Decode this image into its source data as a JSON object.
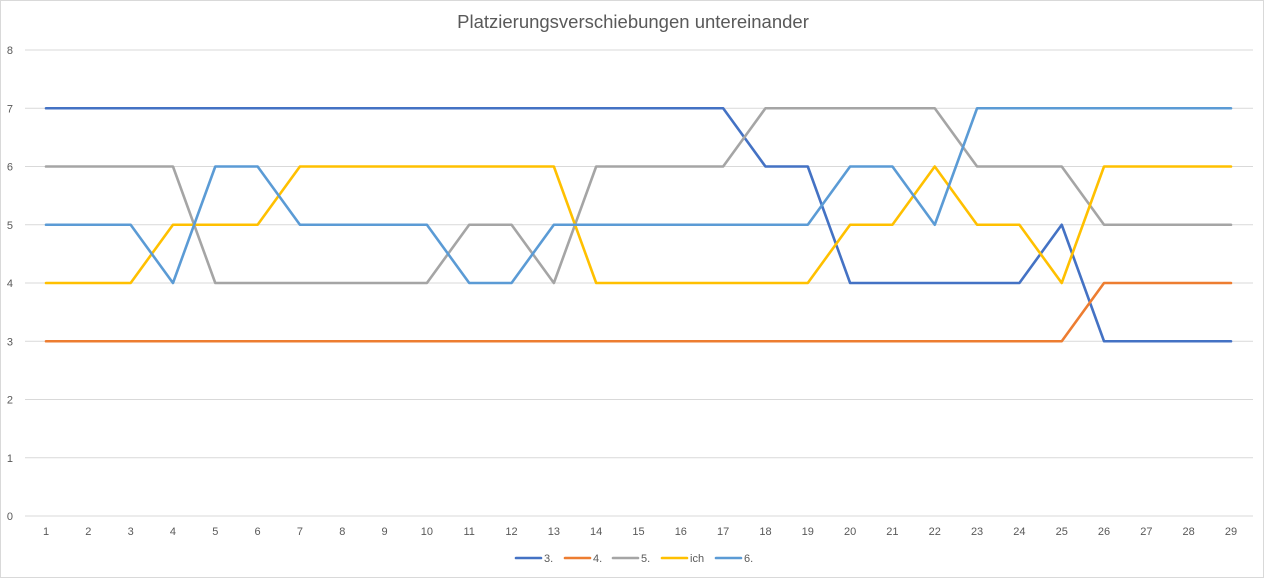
{
  "chart_data": {
    "type": "line",
    "title": "Platzierungsverschiebungen untereinander",
    "xlabel": "",
    "ylabel": "",
    "x": [
      1,
      2,
      3,
      4,
      5,
      6,
      7,
      8,
      9,
      10,
      11,
      12,
      13,
      14,
      15,
      16,
      17,
      18,
      19,
      20,
      21,
      22,
      23,
      24,
      25,
      26,
      27,
      28,
      29
    ],
    "ylim": [
      0,
      8
    ],
    "yticks": [
      0,
      1,
      2,
      3,
      4,
      5,
      6,
      7,
      8
    ],
    "grid": true,
    "legend_position": "bottom",
    "series": [
      {
        "name": "3.",
        "color": "#4472C4",
        "values": [
          7,
          7,
          7,
          7,
          7,
          7,
          7,
          7,
          7,
          7,
          7,
          7,
          7,
          7,
          7,
          7,
          7,
          6,
          6,
          4,
          4,
          4,
          4,
          4,
          5,
          3,
          3,
          3,
          3
        ]
      },
      {
        "name": "4.",
        "color": "#ED7D31",
        "values": [
          3,
          3,
          3,
          3,
          3,
          3,
          3,
          3,
          3,
          3,
          3,
          3,
          3,
          3,
          3,
          3,
          3,
          3,
          3,
          3,
          3,
          3,
          3,
          3,
          3,
          4,
          4,
          4,
          4
        ]
      },
      {
        "name": "5.",
        "color": "#A5A5A5",
        "values": [
          6,
          6,
          6,
          6,
          4,
          4,
          4,
          4,
          4,
          4,
          5,
          5,
          4,
          6,
          6,
          6,
          6,
          7,
          7,
          7,
          7,
          7,
          6,
          6,
          6,
          5,
          5,
          5,
          5
        ]
      },
      {
        "name": "ich",
        "color": "#FFC000",
        "values": [
          4,
          4,
          4,
          5,
          5,
          5,
          6,
          6,
          6,
          6,
          6,
          6,
          6,
          4,
          4,
          4,
          4,
          4,
          4,
          5,
          5,
          6,
          5,
          5,
          4,
          6,
          6,
          6,
          6
        ]
      },
      {
        "name": "6.",
        "color": "#5B9BD5",
        "values": [
          5,
          5,
          5,
          4,
          6,
          6,
          5,
          5,
          5,
          5,
          4,
          4,
          5,
          5,
          5,
          5,
          5,
          5,
          5,
          6,
          6,
          5,
          7,
          7,
          7,
          7,
          7,
          7,
          7
        ]
      }
    ]
  }
}
